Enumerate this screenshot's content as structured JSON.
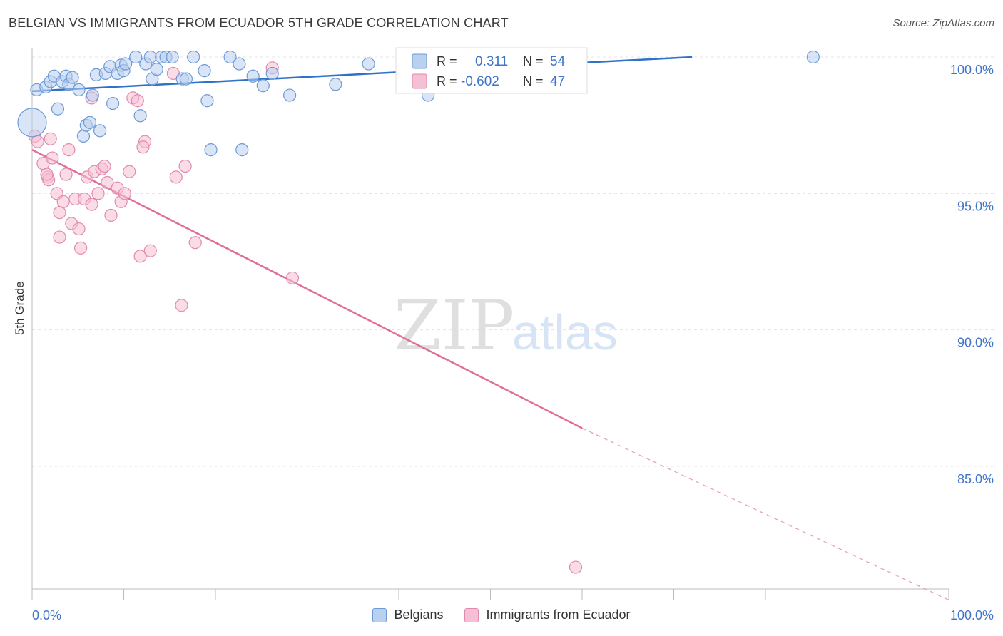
{
  "header": {
    "title": "BELGIAN VS IMMIGRANTS FROM ECUADOR 5TH GRADE CORRELATION CHART",
    "source": "Source: ZipAtlas.com"
  },
  "watermark": {
    "zip": "ZIP",
    "atlas": "atlas"
  },
  "colors": {
    "blue": "#3f7fcc",
    "blue_fill": "#b9d0ef",
    "pink": "#e07aa3",
    "pink_fill": "#f5c0d3",
    "axis_text": "#3f74c9"
  },
  "chart_data": {
    "type": "scatter",
    "title": "BELGIAN VS IMMIGRANTS FROM ECUADOR 5TH GRADE CORRELATION CHART",
    "xlabel": "",
    "ylabel": "5th Grade",
    "xlim": [
      0,
      100
    ],
    "ylim": [
      80.0,
      100.7
    ],
    "x_tick_labels": [
      "0.0%",
      "100.0%"
    ],
    "y_ticks": [
      85.0,
      90.0,
      95.0,
      100.0
    ],
    "y_tick_labels": [
      "85.0%",
      "90.0%",
      "95.0%",
      "100.0%"
    ],
    "grid": true,
    "legend": {
      "placement": "top-center",
      "r_label": "R =",
      "n_label": "N ="
    },
    "series": [
      {
        "name": "Belgians",
        "color": "#3f7fcc",
        "R": "0.311",
        "N": "54",
        "trend": {
          "x": [
            0,
            72
          ],
          "y": [
            98.75,
            100.0
          ]
        },
        "points": [
          [
            0.0,
            97.6
          ],
          [
            0.5,
            98.8
          ],
          [
            1.5,
            98.9
          ],
          [
            2.0,
            99.1
          ],
          [
            2.4,
            99.3
          ],
          [
            2.8,
            98.1
          ],
          [
            3.3,
            99.1
          ],
          [
            3.7,
            99.3
          ],
          [
            4.0,
            99.0
          ],
          [
            4.4,
            99.25
          ],
          [
            5.1,
            98.8
          ],
          [
            5.6,
            97.1
          ],
          [
            5.9,
            97.5
          ],
          [
            6.3,
            97.6
          ],
          [
            6.6,
            98.6
          ],
          [
            7.0,
            99.35
          ],
          [
            7.4,
            97.3
          ],
          [
            8.0,
            99.4
          ],
          [
            8.5,
            99.65
          ],
          [
            8.8,
            98.3
          ],
          [
            9.3,
            99.4
          ],
          [
            9.7,
            99.7
          ],
          [
            10.0,
            99.5
          ],
          [
            10.2,
            99.75
          ],
          [
            11.3,
            100.0
          ],
          [
            11.8,
            97.85
          ],
          [
            12.4,
            99.75
          ],
          [
            12.9,
            100.0
          ],
          [
            13.1,
            99.2
          ],
          [
            13.6,
            99.55
          ],
          [
            14.1,
            100.0
          ],
          [
            14.6,
            100.0
          ],
          [
            15.3,
            100.0
          ],
          [
            16.4,
            99.2
          ],
          [
            16.8,
            99.2
          ],
          [
            17.6,
            100.0
          ],
          [
            18.8,
            99.5
          ],
          [
            19.1,
            98.4
          ],
          [
            19.5,
            96.6
          ],
          [
            21.6,
            100.0
          ],
          [
            22.6,
            99.75
          ],
          [
            22.9,
            96.6
          ],
          [
            24.1,
            99.3
          ],
          [
            25.2,
            98.95
          ],
          [
            26.2,
            99.4
          ],
          [
            28.1,
            98.6
          ],
          [
            33.1,
            99.0
          ],
          [
            36.7,
            99.75
          ],
          [
            43.2,
            98.6
          ],
          [
            85.2,
            100.0
          ]
        ]
      },
      {
        "name": "Immigrants from Ecuador",
        "color": "#e07aa3",
        "R": "-0.602",
        "N": "47",
        "trend": {
          "x": [
            0,
            60
          ],
          "y": [
            96.6,
            86.4
          ]
        },
        "trend_dashed": {
          "x": [
            60,
            100
          ],
          "y": [
            86.4,
            80.1
          ]
        },
        "points": [
          [
            0.3,
            97.1
          ],
          [
            0.6,
            96.9
          ],
          [
            1.2,
            96.1
          ],
          [
            1.7,
            95.6
          ],
          [
            1.8,
            95.5
          ],
          [
            2.2,
            96.3
          ],
          [
            2.7,
            95.0
          ],
          [
            3.0,
            94.3
          ],
          [
            3.4,
            94.7
          ],
          [
            3.7,
            95.7
          ],
          [
            4.3,
            93.9
          ],
          [
            4.7,
            94.8
          ],
          [
            5.1,
            93.7
          ],
          [
            5.3,
            93.0
          ],
          [
            5.7,
            94.8
          ],
          [
            6.0,
            95.6
          ],
          [
            6.5,
            94.6
          ],
          [
            6.8,
            95.8
          ],
          [
            7.2,
            95.0
          ],
          [
            7.6,
            95.9
          ],
          [
            7.9,
            96.0
          ],
          [
            8.2,
            95.4
          ],
          [
            8.6,
            94.2
          ],
          [
            9.3,
            95.2
          ],
          [
            9.7,
            94.7
          ],
          [
            10.1,
            95.0
          ],
          [
            10.6,
            95.8
          ],
          [
            11.0,
            98.5
          ],
          [
            11.5,
            98.4
          ],
          [
            11.8,
            92.7
          ],
          [
            12.3,
            96.9
          ],
          [
            12.9,
            92.9
          ],
          [
            15.4,
            99.4
          ],
          [
            15.7,
            95.6
          ],
          [
            16.3,
            90.9
          ],
          [
            16.7,
            96.0
          ],
          [
            17.8,
            93.2
          ],
          [
            26.2,
            99.6
          ],
          [
            28.4,
            91.9
          ],
          [
            59.3,
            81.3
          ],
          [
            6.5,
            98.5
          ],
          [
            4.0,
            96.6
          ],
          [
            2.0,
            97.0
          ],
          [
            12.1,
            96.7
          ],
          [
            1.6,
            95.7
          ],
          [
            3.0,
            93.4
          ]
        ]
      }
    ]
  }
}
